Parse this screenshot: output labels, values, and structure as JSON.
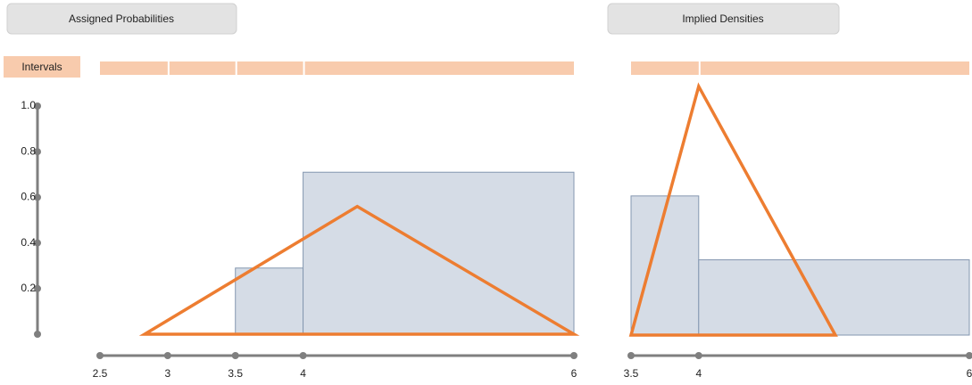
{
  "chart_data": [
    {
      "type": "histogram",
      "title": "Assigned Probabilities",
      "intervals_label": "Intervals",
      "intervals": [
        [
          2.5,
          3
        ],
        [
          3,
          3.5
        ],
        [
          3.5,
          4
        ],
        [
          4,
          6
        ]
      ],
      "bins": [
        3.5,
        4,
        6
      ],
      "values": [
        0.29,
        0.71
      ],
      "color": "#d5dce6",
      "series": [
        {
          "x": [
            2.83,
            4.4,
            6
          ],
          "values": [
            0,
            0.56,
            0
          ],
          "color": "#ed7d31"
        }
      ],
      "xlim": [
        2.5,
        6
      ],
      "xticks": [
        2.5,
        3,
        3.5,
        4,
        6
      ],
      "ylim": [
        0,
        1
      ],
      "yticks": [
        0.2,
        0.4,
        0.6,
        0.8,
        {
          "value": 1,
          "label": "1.0"
        }
      ]
    },
    {
      "type": "histogram",
      "title": "Implied Densities",
      "intervals": [
        [
          3.5,
          4
        ],
        [
          4,
          6
        ]
      ],
      "bins": [
        3.5,
        4,
        6
      ],
      "values": [
        0.61,
        0.33
      ],
      "color": "#d5dce6",
      "series": [
        {
          "x": [
            3.5,
            4,
            5.01
          ],
          "values": [
            0,
            1.09,
            0
          ],
          "color": "#ed7d31"
        }
      ],
      "xlim": [
        3.5,
        6
      ],
      "xticks": [
        3.5,
        4,
        6
      ]
    }
  ]
}
